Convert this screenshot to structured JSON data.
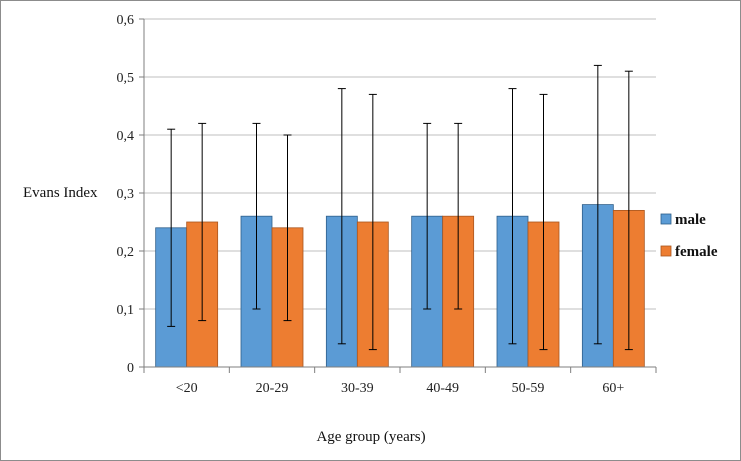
{
  "chart_data": {
    "type": "bar",
    "title": "",
    "xlabel": "Age group (years)",
    "ylabel": "Evans Index",
    "categories": [
      "<20",
      "20-29",
      "30-39",
      "40-49",
      "50-59",
      "60+"
    ],
    "ylim": [
      0,
      0.6
    ],
    "yticks": [
      0,
      0.1,
      0.2,
      0.3,
      0.4,
      0.5,
      0.6
    ],
    "ytick_labels": [
      "0",
      "0,1",
      "0,2",
      "0,3",
      "0,4",
      "0,5",
      "0,6"
    ],
    "grid": true,
    "legend": "right",
    "error_bars": true,
    "series": [
      {
        "name": "male",
        "color": "#5b9bd5",
        "values": [
          0.24,
          0.26,
          0.26,
          0.26,
          0.26,
          0.28
        ],
        "err_low": [
          0.07,
          0.1,
          0.04,
          0.1,
          0.04,
          0.04
        ],
        "err_high": [
          0.41,
          0.42,
          0.48,
          0.42,
          0.48,
          0.52
        ]
      },
      {
        "name": "female",
        "color": "#ed7d31",
        "values": [
          0.25,
          0.24,
          0.25,
          0.26,
          0.25,
          0.27
        ],
        "err_low": [
          0.08,
          0.08,
          0.03,
          0.1,
          0.03,
          0.03
        ],
        "err_high": [
          0.42,
          0.4,
          0.47,
          0.42,
          0.47,
          0.51
        ]
      }
    ]
  }
}
